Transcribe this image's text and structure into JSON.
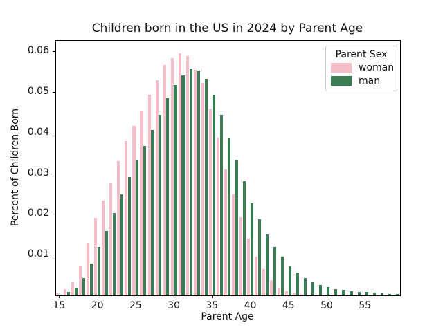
{
  "chart_data": {
    "type": "bar",
    "title": "Children born in the US in 2024 by Parent Age",
    "xlabel": "Parent Age",
    "ylabel": "Percent of Children Born",
    "grid": false,
    "legend": {
      "title": "Parent Sex",
      "position": "upper right"
    },
    "categories": [
      15,
      16,
      17,
      18,
      19,
      20,
      21,
      22,
      23,
      24,
      25,
      26,
      27,
      28,
      29,
      30,
      31,
      32,
      33,
      34,
      35,
      36,
      37,
      38,
      39,
      40,
      41,
      42,
      43,
      44,
      45,
      46,
      47,
      48,
      49,
      50,
      51,
      52,
      53,
      54,
      55,
      56,
      57,
      58,
      59
    ],
    "series": [
      {
        "name": "woman",
        "color": "#f4bdc8",
        "values": [
          0.0006,
          0.0015,
          0.0033,
          0.0073,
          0.0128,
          0.019,
          0.0233,
          0.0278,
          0.033,
          0.038,
          0.0417,
          0.0454,
          0.0494,
          0.0529,
          0.0567,
          0.0583,
          0.0596,
          0.0589,
          0.0555,
          0.0522,
          0.0459,
          0.0388,
          0.0309,
          0.0248,
          0.0192,
          0.0139,
          0.0096,
          0.0064,
          0.0038,
          0.0019,
          0.001,
          0.0005,
          0.0003,
          0.0002,
          0.0002,
          0.0001,
          0.0001,
          0.0001,
          0.0001,
          0.0001,
          0.0001,
          0.0,
          0.0,
          0.0,
          0.0
        ]
      },
      {
        "name": "man",
        "color": "#3a7d54",
        "values": [
          0.0002,
          0.0008,
          0.0019,
          0.0042,
          0.0079,
          0.012,
          0.0158,
          0.0202,
          0.0248,
          0.0291,
          0.0331,
          0.0367,
          0.0406,
          0.0444,
          0.0485,
          0.0517,
          0.0541,
          0.0556,
          0.0553,
          0.0533,
          0.0493,
          0.0444,
          0.0386,
          0.0333,
          0.028,
          0.0227,
          0.0188,
          0.015,
          0.012,
          0.0096,
          0.0072,
          0.0057,
          0.0042,
          0.0033,
          0.0025,
          0.0021,
          0.0015,
          0.0013,
          0.0011,
          0.0009,
          0.0008,
          0.0007,
          0.0005,
          0.0004,
          0.0004
        ]
      }
    ],
    "x_ticks": [
      15,
      20,
      25,
      30,
      35,
      40,
      45,
      50,
      55
    ],
    "y_ticks": [
      0.01,
      0.02,
      0.03,
      0.04,
      0.05,
      0.06
    ],
    "y_tick_labels": [
      "0.01",
      "0.02",
      "0.03",
      "0.04",
      "0.05",
      "0.06"
    ],
    "xlim": [
      14.6,
      59.6
    ],
    "ylim": [
      0,
      0.0626
    ]
  }
}
